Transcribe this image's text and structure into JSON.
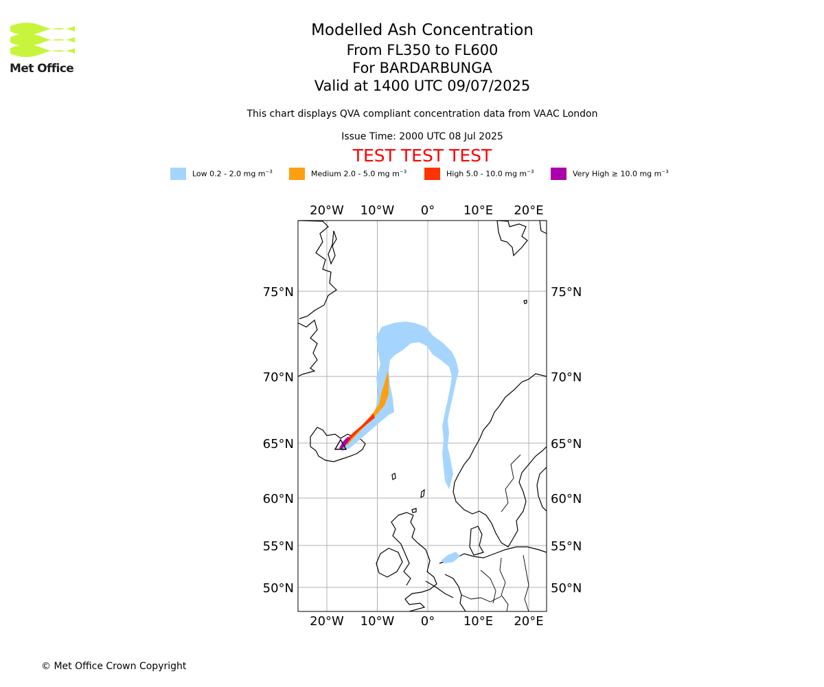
{
  "organisation": "Met Office",
  "title": {
    "main": "Modelled Ash Concentration",
    "levels": "From FL350 to FL600",
    "volcano": "For BARDARBUNGA",
    "valid": "Valid at 1400 UTC 09/07/2025"
  },
  "description": "This chart displays QVA compliant concentration data from VAAC London",
  "issue_time": "Issue Time: 2000 UTC 08 Jul 2025",
  "test_banner": "TEST TEST TEST",
  "legend": [
    {
      "label": "Low 0.2 - 2.0 mg m",
      "color": "#a5d5ff"
    },
    {
      "label": "Medium 2.0 - 5.0 mg m",
      "color": "#ff9f10"
    },
    {
      "label": "High 5.0 - 10.0 mg m",
      "color": "#ff3300"
    },
    {
      "label": "Very High  ≥  10.0 mg m",
      "color": "#aa00aa"
    }
  ],
  "legend_unit_exponent": "−3",
  "map": {
    "lon_ticks": [
      "20°W",
      "10°W",
      "0°",
      "10°E",
      "20°E"
    ],
    "lat_ticks": [
      "75°N",
      "70°N",
      "65°N",
      "60°N",
      "55°N",
      "50°N"
    ],
    "lon_tick_values": [
      -20,
      -10,
      0,
      10,
      20
    ],
    "lat_tick_values": [
      75,
      70,
      65,
      60,
      55,
      50
    ],
    "grid": true,
    "volcano_marker": "triangle",
    "volcano_position": {
      "lon": -17.5,
      "lat": 64.6
    }
  },
  "copyright": "© Met Office Crown Copyright"
}
